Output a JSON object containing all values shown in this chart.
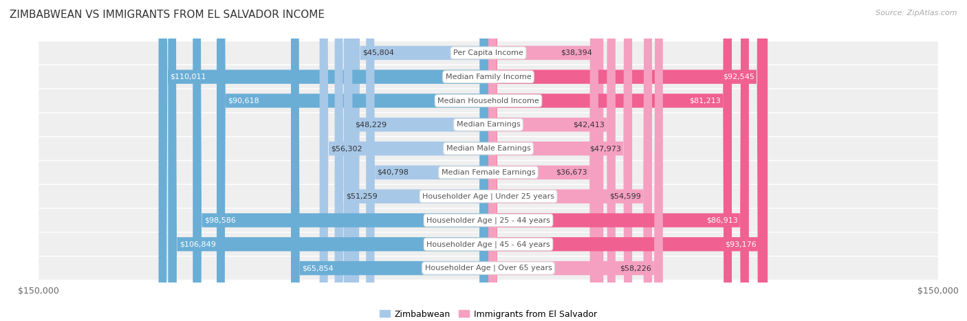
{
  "title": "ZIMBABWEAN VS IMMIGRANTS FROM EL SALVADOR INCOME",
  "source": "Source: ZipAtlas.com",
  "categories": [
    "Per Capita Income",
    "Median Family Income",
    "Median Household Income",
    "Median Earnings",
    "Median Male Earnings",
    "Median Female Earnings",
    "Householder Age | Under 25 years",
    "Householder Age | 25 - 44 years",
    "Householder Age | 45 - 64 years",
    "Householder Age | Over 65 years"
  ],
  "zimbabwean_values": [
    45804,
    110011,
    90618,
    48229,
    56302,
    40798,
    51259,
    98586,
    106849,
    65854
  ],
  "elsalvador_values": [
    38394,
    92545,
    81213,
    42413,
    47973,
    36673,
    54599,
    86913,
    93176,
    58226
  ],
  "zimbabwean_labels": [
    "$45,804",
    "$110,011",
    "$90,618",
    "$48,229",
    "$56,302",
    "$40,798",
    "$51,259",
    "$98,586",
    "$106,849",
    "$65,854"
  ],
  "elsalvador_labels": [
    "$38,394",
    "$92,545",
    "$81,213",
    "$42,413",
    "$47,973",
    "$36,673",
    "$54,599",
    "$86,913",
    "$93,176",
    "$58,226"
  ],
  "zim_color_light": "#a8c8e8",
  "zim_color_dark": "#6aaed6",
  "sal_color_light": "#f5a0c0",
  "sal_color_dark": "#f06090",
  "zim_large_threshold": 60000,
  "sal_large_threshold": 60000,
  "max_value": 150000,
  "bar_height": 0.58,
  "row_bg_color": "#efefef",
  "row_gap_color": "#ffffff",
  "label_inside_color": "#ffffff",
  "label_outside_color": "#888888",
  "legend_label_zimbabwean": "Zimbabwean",
  "legend_label_elsalvador": "Immigrants from El Salvador",
  "xlabel_left": "$150,000",
  "xlabel_right": "$150,000",
  "cat_box_facecolor": "#ffffff",
  "cat_box_edgecolor": "#dddddd",
  "cat_text_color": "#555555"
}
